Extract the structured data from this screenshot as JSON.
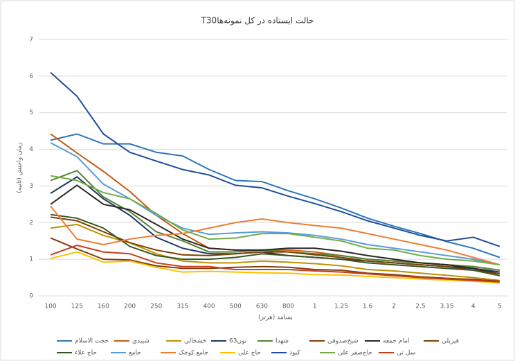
{
  "chart_data": {
    "type": "line",
    "title": "T30حالت ایستاده در کل نمونه‌ها",
    "y_label": "زمان واخنش (ثانیه)",
    "x_label": "بسامد (هرتز)",
    "categories": [
      "100",
      "125",
      "160",
      "200",
      "250",
      "315",
      "400",
      "500",
      "630",
      "800",
      "1",
      "1.25",
      "1.6",
      "2",
      "2.5",
      "3.15",
      "4",
      "5"
    ],
    "ylim": [
      0,
      7
    ],
    "yticks": [
      0,
      1,
      2,
      3,
      4,
      5,
      6,
      7
    ],
    "grid": true,
    "series": [
      {
        "name": "حجت الاسلام",
        "color": "#2e75b6",
        "values": [
          4.25,
          4.42,
          4.15,
          4.15,
          3.92,
          3.82,
          3.45,
          3.15,
          3.12,
          2.87,
          2.65,
          2.4,
          2.12,
          1.9,
          1.7,
          1.48,
          1.3,
          1.05
        ]
      },
      {
        "name": "شیبدی",
        "color": "#c55a11",
        "values": [
          4.42,
          3.9,
          3.4,
          2.85,
          2.2,
          1.7,
          1.3,
          1.25,
          1.25,
          1.25,
          1.2,
          1.1,
          1.0,
          0.95,
          0.9,
          0.85,
          0.8,
          0.7
        ]
      },
      {
        "name": "خشخالی",
        "color": "#bf9000",
        "values": [
          1.85,
          1.95,
          1.65,
          1.45,
          1.15,
          0.95,
          0.9,
          0.9,
          0.95,
          0.92,
          0.88,
          0.82,
          0.72,
          0.68,
          0.62,
          0.56,
          0.5,
          0.42
        ]
      },
      {
        "name": "63نون",
        "color": "#1f3864",
        "values": [
          2.8,
          3.25,
          2.65,
          2.2,
          1.6,
          1.3,
          1.15,
          1.15,
          1.2,
          1.1,
          1.05,
          1.0,
          0.95,
          0.9,
          0.85,
          0.8,
          0.75,
          0.65
        ]
      },
      {
        "name": "شهدا",
        "color": "#548235",
        "values": [
          3.15,
          3.42,
          2.7,
          2.3,
          1.75,
          1.5,
          1.2,
          1.2,
          1.25,
          1.2,
          1.15,
          1.1,
          1.0,
          0.95,
          0.9,
          0.85,
          0.8,
          0.7
        ]
      },
      {
        "name": "شیخ‌صدوقی",
        "color": "#843c0c",
        "values": [
          1.58,
          1.28,
          1.0,
          0.98,
          0.82,
          0.75,
          0.75,
          0.78,
          0.8,
          0.78,
          0.72,
          0.7,
          0.62,
          0.58,
          0.52,
          0.48,
          0.45,
          0.4
        ]
      },
      {
        "name": "امام جمعه",
        "color": "#262626",
        "values": [
          2.5,
          3.02,
          2.5,
          2.35,
          1.95,
          1.55,
          1.3,
          1.25,
          1.25,
          1.3,
          1.3,
          1.22,
          1.1,
          1.0,
          0.9,
          0.85,
          0.75,
          0.6
        ]
      },
      {
        "name": "قیزیلی",
        "color": "#7f3f00",
        "values": [
          2.15,
          2.05,
          1.75,
          1.45,
          1.25,
          1.12,
          1.1,
          1.15,
          1.2,
          1.2,
          1.12,
          1.05,
          0.95,
          0.9,
          0.85,
          0.8,
          0.7,
          0.6
        ]
      },
      {
        "name": "حاج علاء",
        "color": "#375623",
        "values": [
          2.22,
          2.12,
          1.85,
          1.35,
          1.1,
          1.0,
          1.0,
          1.05,
          1.15,
          1.1,
          1.05,
          1.0,
          0.9,
          0.85,
          0.8,
          0.75,
          0.7,
          0.55
        ]
      },
      {
        "name": "جامع",
        "color": "#5b9bd5",
        "values": [
          4.18,
          3.8,
          3.05,
          2.65,
          2.2,
          1.85,
          1.68,
          1.72,
          1.75,
          1.72,
          1.65,
          1.55,
          1.4,
          1.3,
          1.2,
          1.1,
          1.0,
          0.85
        ]
      },
      {
        "name": "جامع کوچک",
        "color": "#ed7d31",
        "values": [
          2.45,
          1.55,
          1.4,
          1.55,
          1.65,
          1.7,
          1.85,
          2.0,
          2.1,
          2.0,
          1.92,
          1.85,
          1.7,
          1.55,
          1.4,
          1.25,
          1.05,
          0.85
        ]
      },
      {
        "name": "حاج علی",
        "color": "#ffc000",
        "values": [
          1.02,
          1.2,
          0.92,
          0.95,
          0.78,
          0.65,
          0.67,
          0.65,
          0.63,
          0.62,
          0.58,
          0.57,
          0.53,
          0.5,
          0.46,
          0.43,
          0.4,
          0.35
        ]
      },
      {
        "name": "کبود",
        "color": "#1f4e9c",
        "values": [
          6.1,
          5.45,
          4.42,
          3.92,
          3.68,
          3.45,
          3.3,
          3.02,
          2.95,
          2.72,
          2.52,
          2.3,
          2.05,
          1.85,
          1.65,
          1.5,
          1.6,
          1.35
        ]
      },
      {
        "name": "حاج‌صفر علی",
        "color": "#70ad47",
        "values": [
          3.28,
          3.15,
          2.82,
          2.65,
          2.25,
          1.8,
          1.55,
          1.58,
          1.7,
          1.7,
          1.6,
          1.5,
          1.3,
          1.25,
          1.1,
          1.0,
          0.95,
          0.85
        ]
      },
      {
        "name": "سل نی",
        "color": "#c43e1c",
        "values": [
          1.12,
          1.38,
          1.2,
          1.15,
          0.9,
          0.8,
          0.8,
          0.72,
          0.72,
          0.72,
          0.68,
          0.65,
          0.6,
          0.55,
          0.5,
          0.46,
          0.42,
          0.38
        ]
      }
    ]
  }
}
